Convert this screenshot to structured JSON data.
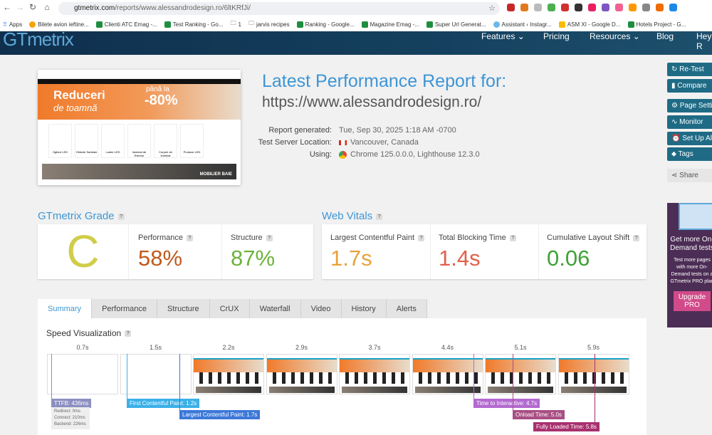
{
  "browser": {
    "url_host": "gtmetrix.com",
    "url_path": "/reports/www.alessandrodesign.ro/6ltKRfJi/",
    "bookmarks": [
      "Apps",
      "Bilete avion ieftine...",
      "Clienti ATC Emag -...",
      "Test Ranking - Go...",
      "1",
      "jarvis recipes",
      "Ranking - Google...",
      "Magazine Emag -...",
      "Super Url Generat...",
      "Assistant ‹ Instagr...",
      "ASM XI - Google D...",
      "Hotels Project - G..."
    ]
  },
  "header": {
    "logo": "GTmetrix",
    "nav": [
      "Features ⌄",
      "Pricing",
      "Resources ⌄",
      "Blog",
      "Hey R"
    ]
  },
  "report": {
    "title": "Latest Performance Report for:",
    "url": "https://www.alessandrodesign.ro/",
    "details": [
      {
        "label": "Report generated:",
        "value": "Tue, Sep 30, 2025 1:18 AM -0700"
      },
      {
        "label": "Test Server Location:",
        "value": "Vancouver, Canada"
      },
      {
        "label": "Using:",
        "value": "Chrome 125.0.0.0, Lighthouse 12.3.0"
      }
    ]
  },
  "thumbnail": {
    "banner_title": "Reduceri",
    "banner_sub": "de toamnă",
    "promo_top": "până la",
    "promo": "-80%",
    "categories": [
      "Oglinzi LED",
      "Obiecte Sanitare",
      "Lustre LED",
      "Iluminat de Exterior",
      "Corpuri de Iluminat",
      "Produse LED"
    ],
    "footer_banner": "MOBILIER BAIE"
  },
  "grade": {
    "heading": "GTmetrix Grade",
    "letter": "C",
    "performance_label": "Performance",
    "performance": "58%",
    "structure_label": "Structure",
    "structure": "87%"
  },
  "vitals": {
    "heading": "Web Vitals",
    "items": [
      {
        "label": "Largest Contentful Paint",
        "value": "1.7s",
        "color": "#e8a23a"
      },
      {
        "label": "Total Blocking Time",
        "value": "1.4s",
        "color": "#e0604a"
      },
      {
        "label": "Cumulative Layout Shift",
        "value": "0.06",
        "color": "#3ea334"
      }
    ]
  },
  "tabs": [
    "Summary",
    "Performance",
    "Structure",
    "CrUX",
    "Waterfall",
    "Video",
    "History",
    "Alerts"
  ],
  "speed": {
    "heading": "Speed Visualization",
    "timestamps": [
      "0.7s",
      "1.5s",
      "2.2s",
      "2.9s",
      "3.7s",
      "4.4s",
      "5.1s",
      "5.9s"
    ],
    "ttfb": "TTFB: 436ms",
    "ttfb_details": [
      "Redirect: 0ms",
      "Connect: 210ms",
      "Backend: 226ms"
    ],
    "markers": [
      {
        "label": "First Contentful Paint: 1.2s",
        "color": "#3ab0e8"
      },
      {
        "label": "Largest Contentful Paint: 1.7s",
        "color": "#3c78d8"
      },
      {
        "label": "Time to Interactive: 4.7s",
        "color": "#b36ad0"
      },
      {
        "label": "Onload Time: 5.0s",
        "color": "#a84f84"
      },
      {
        "label": "Fully Loaded Time: 5.8s",
        "color": "#a8306e"
      }
    ]
  },
  "sidebar": {
    "buttons": [
      "↻ Re-Test",
      "▮ Compare",
      "⚙ Page Settings",
      "∿ Monitor",
      "⏰ Set Up Alerts",
      "⬥ Tags"
    ],
    "share": "Share",
    "promo_title": "Get more On-Demand tests",
    "promo_text": "Test more pages with more On-Demand tests on a GTmetrix PRO plan",
    "upgrade": "Upgrade PRO"
  }
}
